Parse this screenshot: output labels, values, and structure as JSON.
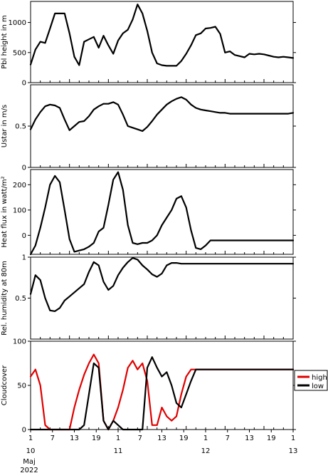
{
  "chart_data": [
    {
      "type": "line",
      "ylabel": "Pbl height in m",
      "ylim": [
        0,
        1350
      ],
      "yticks": [
        0,
        500,
        1000
      ],
      "series": [
        {
          "color": "#000000",
          "x": [
            0,
            3,
            6,
            9,
            12,
            15,
            18,
            21,
            24,
            27,
            30,
            33,
            36,
            39,
            42,
            45,
            48,
            51,
            54,
            57,
            60,
            63,
            66,
            69,
            72,
            75,
            78,
            81,
            84,
            87,
            90,
            93,
            96,
            99,
            102,
            105,
            108,
            111,
            114,
            117,
            120,
            123,
            126,
            129,
            132,
            135,
            138,
            141,
            144,
            147,
            150,
            153,
            156,
            159,
            162
          ],
          "y": [
            300,
            550,
            680,
            660,
            900,
            1150,
            1150,
            1150,
            820,
            430,
            290,
            680,
            720,
            760,
            580,
            780,
            620,
            480,
            700,
            820,
            880,
            1050,
            1300,
            1150,
            860,
            500,
            320,
            290,
            280,
            280,
            280,
            360,
            480,
            620,
            790,
            820,
            900,
            910,
            930,
            810,
            500,
            520,
            460,
            440,
            420,
            480,
            470,
            480,
            470,
            450,
            430,
            420,
            430,
            420,
            410
          ]
        }
      ]
    },
    {
      "type": "line",
      "ylabel": "Ustar in m/s",
      "ylim": [
        0,
        1.0
      ],
      "yticks": [
        0.0,
        0.5
      ],
      "series": [
        {
          "color": "#000000",
          "x": [
            0,
            3,
            6,
            9,
            12,
            15,
            18,
            21,
            24,
            27,
            30,
            33,
            36,
            39,
            42,
            45,
            48,
            51,
            54,
            57,
            60,
            63,
            66,
            69,
            72,
            75,
            78,
            81,
            84,
            87,
            90,
            93,
            96,
            99,
            102,
            105,
            108,
            111,
            114,
            117,
            120,
            123,
            126,
            129,
            132,
            135,
            138,
            141,
            144,
            147,
            150,
            153,
            156,
            159,
            162
          ],
          "y": [
            0.46,
            0.58,
            0.67,
            0.74,
            0.76,
            0.75,
            0.72,
            0.58,
            0.45,
            0.5,
            0.55,
            0.56,
            0.62,
            0.7,
            0.74,
            0.77,
            0.77,
            0.79,
            0.76,
            0.64,
            0.5,
            0.48,
            0.46,
            0.44,
            0.49,
            0.56,
            0.64,
            0.7,
            0.76,
            0.8,
            0.83,
            0.85,
            0.82,
            0.76,
            0.72,
            0.7,
            0.69,
            0.68,
            0.67,
            0.66,
            0.66,
            0.65,
            0.65,
            0.65,
            0.65,
            0.65,
            0.65,
            0.65,
            0.65,
            0.65,
            0.65,
            0.65,
            0.65,
            0.65,
            0.66
          ]
        }
      ]
    },
    {
      "type": "line",
      "ylabel": "Heat flux in watt/m²",
      "ylim": [
        -75,
        260
      ],
      "yticks": [
        0,
        100,
        200
      ],
      "series": [
        {
          "color": "#000000",
          "x": [
            0,
            3,
            6,
            9,
            12,
            15,
            18,
            21,
            24,
            27,
            30,
            33,
            36,
            39,
            42,
            45,
            48,
            51,
            54,
            57,
            60,
            63,
            66,
            69,
            72,
            75,
            78,
            81,
            84,
            87,
            90,
            93,
            96,
            99,
            102,
            105,
            108,
            111,
            114,
            117,
            120,
            123,
            126,
            129,
            132,
            135,
            138,
            141,
            144,
            147,
            150,
            153,
            156,
            159,
            162
          ],
          "y": [
            -75,
            -40,
            30,
            110,
            200,
            235,
            210,
            100,
            -15,
            -65,
            -60,
            -55,
            -45,
            -30,
            15,
            30,
            120,
            220,
            250,
            180,
            40,
            -30,
            -35,
            -30,
            -30,
            -20,
            0,
            40,
            70,
            100,
            145,
            155,
            110,
            20,
            -50,
            -55,
            -40,
            -20,
            -20,
            -20,
            -20,
            -20,
            -20,
            -20,
            -20,
            -20,
            -20,
            -20,
            -20,
            -20,
            -20,
            -20,
            -20,
            -20,
            -20
          ]
        }
      ]
    },
    {
      "type": "line",
      "ylabel": "Rel. humidity at 80m",
      "ylim": [
        0,
        1.0
      ],
      "yticks": [
        0.5,
        1.0
      ],
      "series": [
        {
          "color": "#000000",
          "x": [
            0,
            3,
            6,
            9,
            12,
            15,
            18,
            21,
            24,
            27,
            30,
            33,
            36,
            39,
            42,
            45,
            48,
            51,
            54,
            57,
            60,
            63,
            66,
            69,
            72,
            75,
            78,
            81,
            84,
            87,
            90,
            93,
            96,
            99,
            102,
            105,
            108,
            111,
            114,
            117,
            120,
            123,
            126,
            129,
            132,
            135,
            138,
            141,
            144,
            147,
            150,
            153,
            156,
            159,
            162
          ],
          "y": [
            0.55,
            0.78,
            0.72,
            0.5,
            0.35,
            0.34,
            0.38,
            0.47,
            0.52,
            0.57,
            0.62,
            0.67,
            0.82,
            0.94,
            0.9,
            0.7,
            0.6,
            0.65,
            0.78,
            0.87,
            0.94,
            0.99,
            0.97,
            0.9,
            0.85,
            0.79,
            0.76,
            0.8,
            0.9,
            0.93,
            0.93,
            0.92,
            0.92,
            0.92,
            0.92,
            0.92,
            0.92,
            0.92,
            0.92,
            0.92,
            0.92,
            0.92,
            0.92,
            0.92,
            0.92,
            0.92,
            0.92,
            0.92,
            0.92,
            0.92,
            0.92,
            0.92,
            0.92,
            0.92,
            0.92
          ]
        }
      ]
    },
    {
      "type": "line",
      "ylabel": "Cloudcover",
      "ylim": [
        0,
        100
      ],
      "yticks": [
        0,
        50,
        100
      ],
      "legend_position": "right",
      "series": [
        {
          "name": "high",
          "color": "#e00000",
          "x": [
            0,
            3,
            6,
            9,
            12,
            15,
            18,
            21,
            24,
            27,
            30,
            33,
            36,
            39,
            42,
            45,
            48,
            51,
            54,
            57,
            60,
            63,
            66,
            69,
            72,
            75,
            78,
            81,
            84,
            87,
            90,
            93,
            96,
            99,
            102,
            105,
            108,
            111,
            114,
            117,
            120,
            123,
            126,
            129,
            132,
            135,
            138,
            141,
            144,
            147,
            150,
            153,
            156,
            159,
            162
          ],
          "y": [
            60,
            68,
            50,
            5,
            0,
            0,
            0,
            0,
            0,
            25,
            45,
            62,
            75,
            85,
            75,
            10,
            0,
            10,
            25,
            45,
            70,
            78,
            68,
            75,
            55,
            5,
            5,
            25,
            15,
            10,
            15,
            40,
            60,
            68,
            68,
            68,
            68,
            68,
            68,
            68,
            68,
            68,
            68,
            68,
            68,
            68,
            68,
            68,
            68,
            68,
            68,
            68,
            68,
            68,
            68
          ]
        },
        {
          "name": "low",
          "color": "#000000",
          "x": [
            0,
            3,
            6,
            9,
            12,
            15,
            18,
            21,
            24,
            27,
            30,
            33,
            36,
            39,
            42,
            45,
            48,
            51,
            54,
            57,
            60,
            63,
            66,
            69,
            72,
            75,
            78,
            81,
            84,
            87,
            90,
            93,
            96,
            99,
            102,
            105,
            108,
            111,
            114,
            117,
            120,
            123,
            126,
            129,
            132,
            135,
            138,
            141,
            144,
            147,
            150,
            153,
            156,
            159,
            162
          ],
          "y": [
            0,
            0,
            0,
            0,
            0,
            0,
            0,
            0,
            0,
            0,
            0,
            5,
            40,
            75,
            70,
            10,
            0,
            10,
            5,
            0,
            0,
            0,
            0,
            0,
            70,
            82,
            70,
            60,
            65,
            50,
            30,
            25,
            40,
            55,
            68,
            68,
            68,
            68,
            68,
            68,
            68,
            68,
            68,
            68,
            68,
            68,
            68,
            68,
            68,
            68,
            68,
            68,
            68,
            68,
            68
          ]
        }
      ]
    }
  ],
  "x_axis": {
    "tick_labels": [
      "1",
      "7",
      "13",
      "19",
      "1",
      "7",
      "13",
      "19",
      "1",
      "7",
      "13",
      "19",
      "1"
    ],
    "day_labels": [
      "10",
      "11",
      "12",
      "13"
    ],
    "month_label": "Maj",
    "year_label": "2022"
  }
}
